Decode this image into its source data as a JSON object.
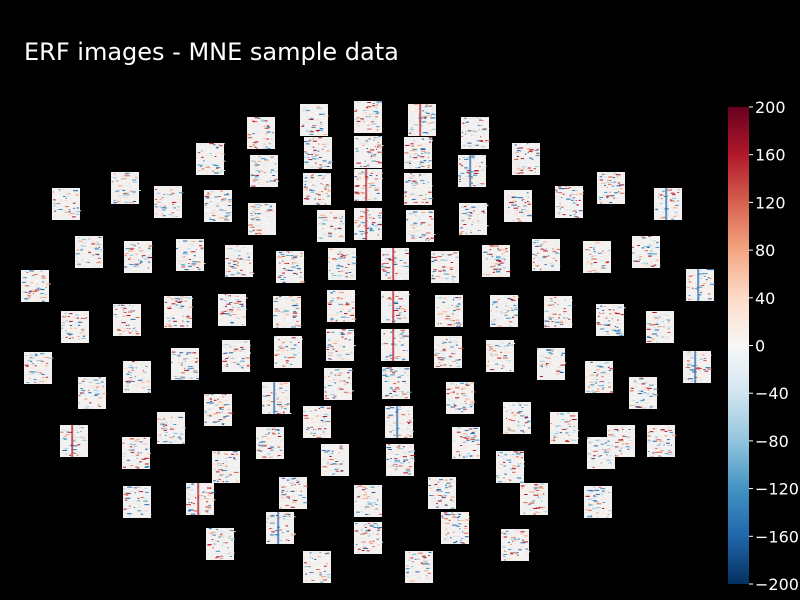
{
  "chart_data": {
    "type": "heatmap",
    "title": "ERF images - MNE sample data",
    "description_layout": "topographic",
    "colorbar": {
      "colormap": "RdBu_r",
      "vmin": -200,
      "vmax": 200,
      "ticks": [
        200,
        160,
        120,
        80,
        40,
        0,
        -40,
        -80,
        -120,
        -160,
        -200
      ],
      "tick_labels": [
        "200",
        "160",
        "120",
        "80",
        "40",
        "0",
        "−40",
        "−80",
        "−120",
        "−160",
        "−200"
      ]
    },
    "colors": {
      "background": "#000000",
      "text": "#ffffff",
      "neutral": "#f7f7f7",
      "red": "#b2182b",
      "blue": "#2166ac"
    }
  }
}
